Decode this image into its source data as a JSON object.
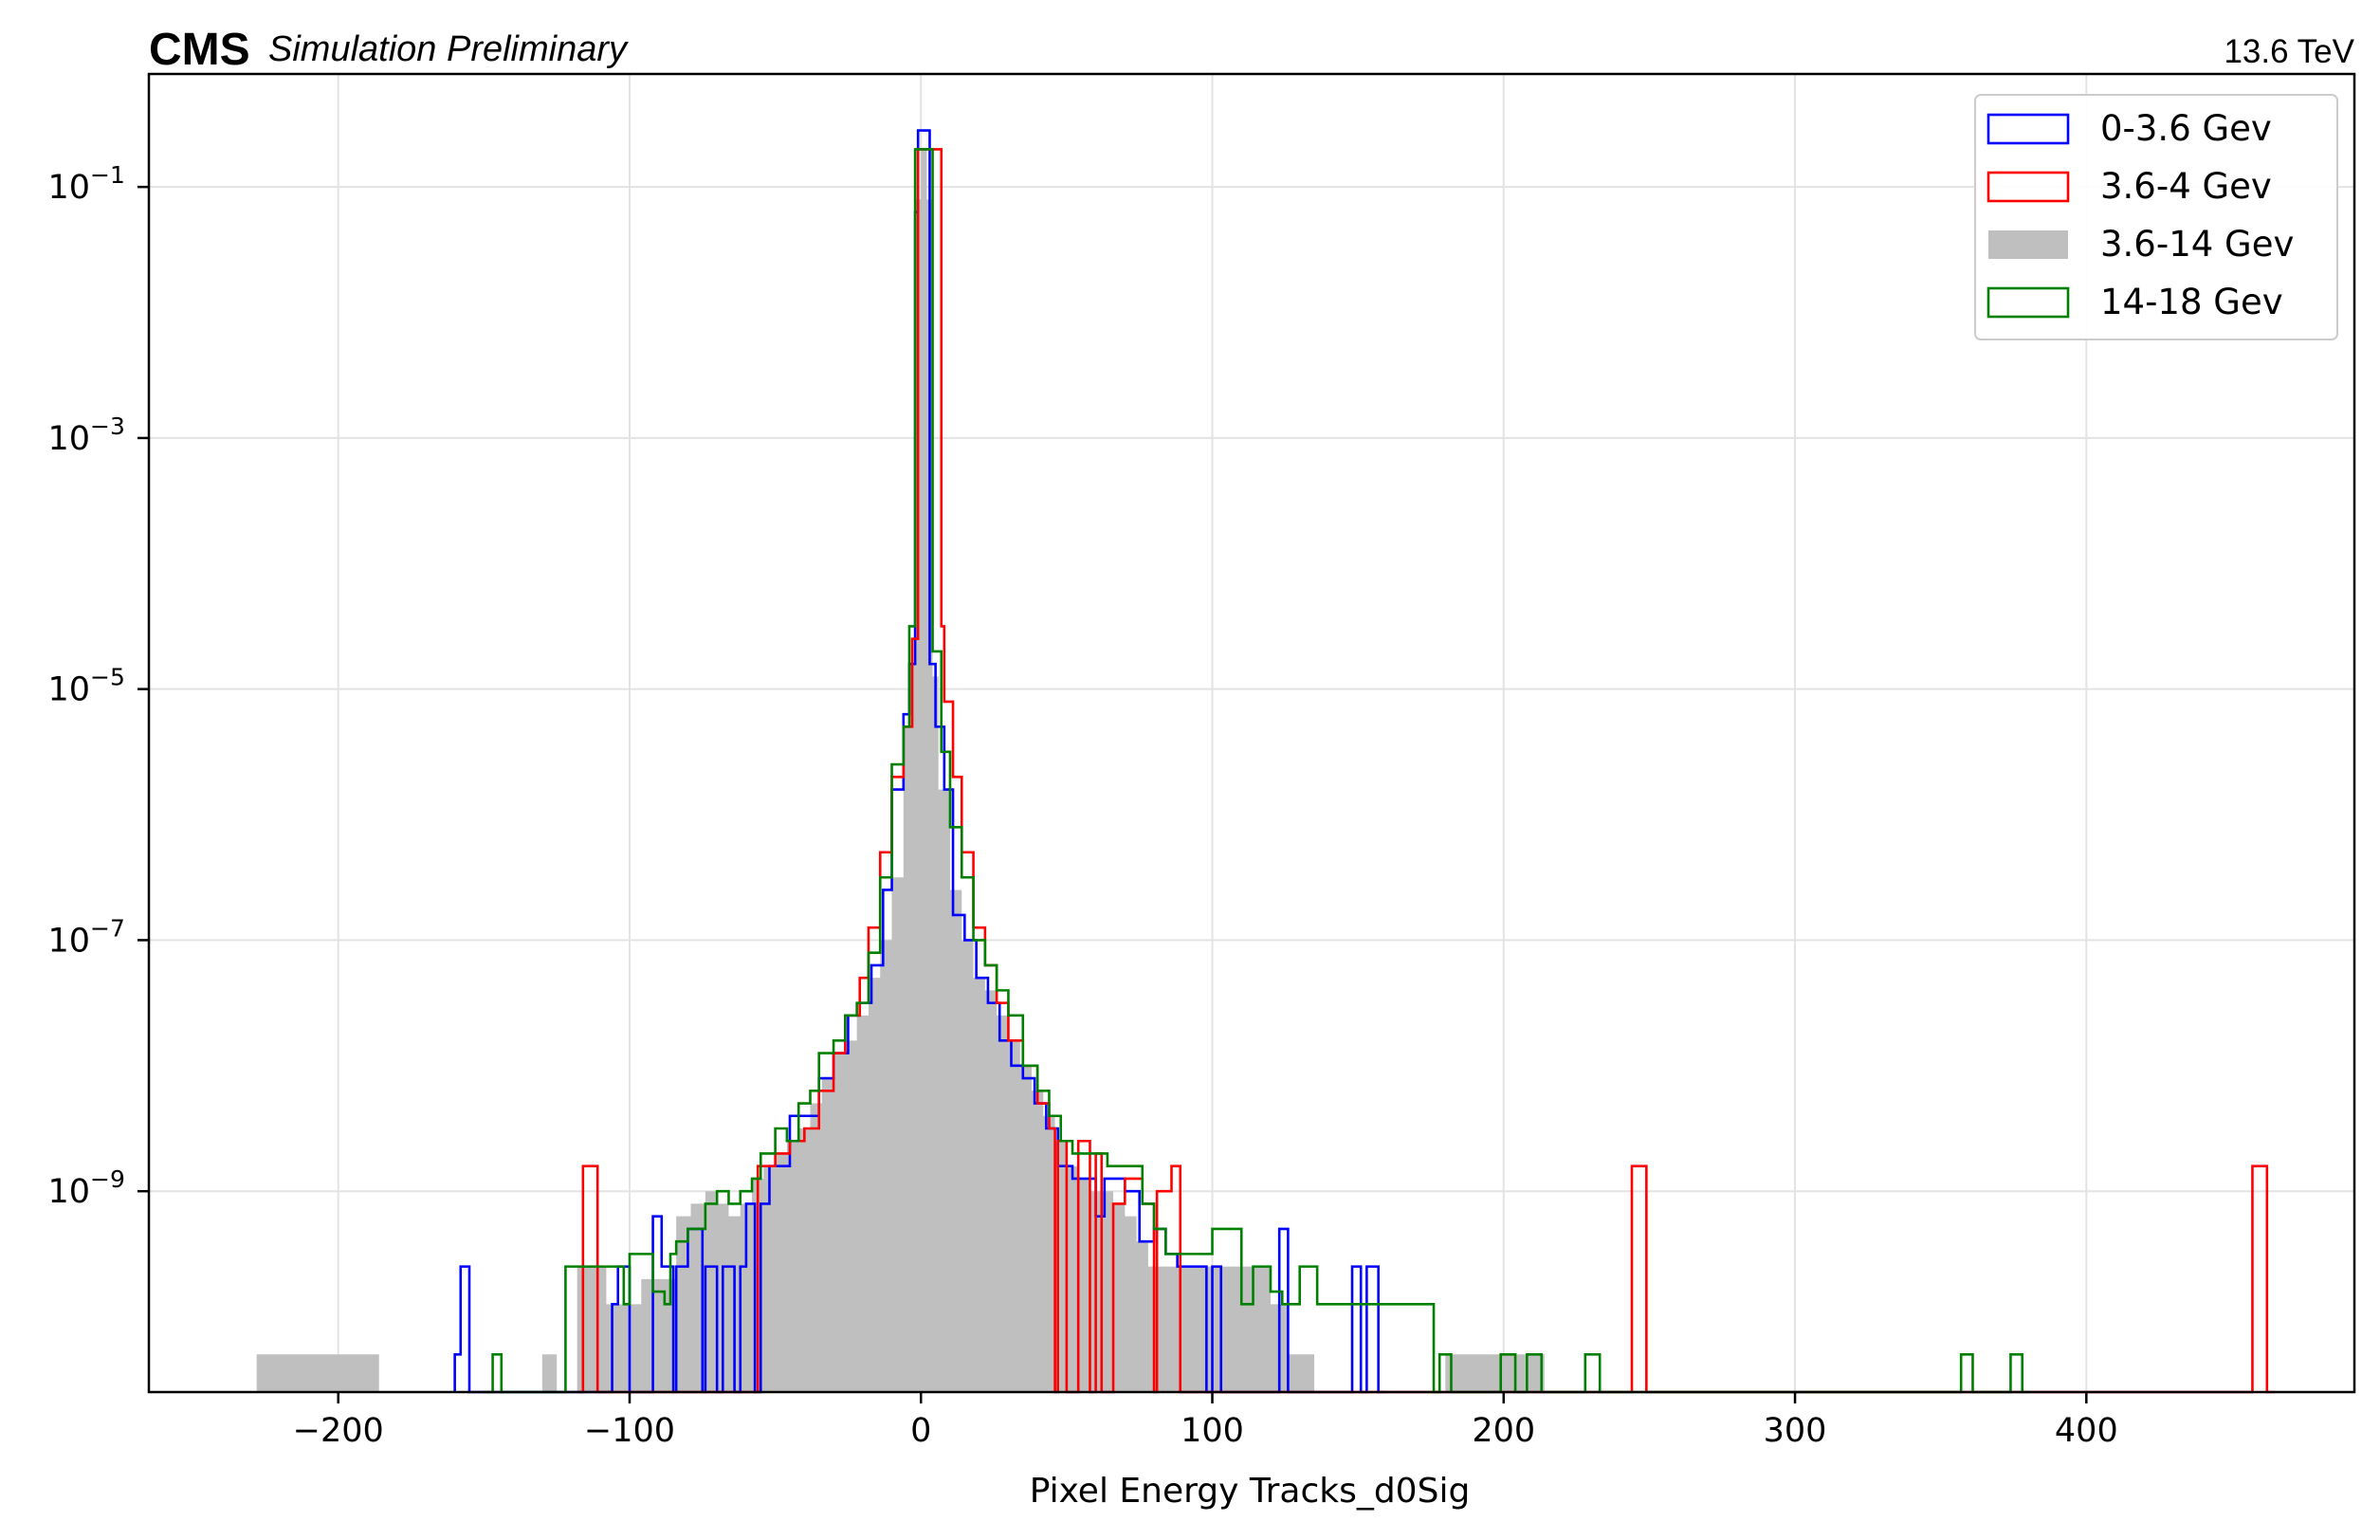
{
  "header": {
    "experiment": "CMS",
    "status": "Simulation Preliminary",
    "energy": "13.6 TeV"
  },
  "chart_data": {
    "type": "histogram",
    "xlabel": "Pixel Energy Tracks_d0Sig",
    "ylabel": "",
    "yscale": "log",
    "xlim": [
      -265,
      492
    ],
    "ylim_log10": [
      -10.6,
      -0.1
    ],
    "x_ticks": [
      -200,
      -100,
      0,
      100,
      200,
      300,
      400
    ],
    "x_tick_labels": [
      "−200",
      "−100",
      "0",
      "100",
      "200",
      "300",
      "400"
    ],
    "y_ticks_log10": [
      -1,
      -3,
      -5,
      -7,
      -9
    ],
    "y_tick_labels": [
      "10",
      "10",
      "10",
      "10",
      "10"
    ],
    "y_tick_exponents": [
      "−1",
      "−3",
      "−5",
      "−7",
      "−9"
    ],
    "grid": true,
    "legend_position": "top-right",
    "legend": [
      "0-3.6 Gev",
      "3.6-4 Gev",
      "3.6-14 Gev",
      "14-18 Gev"
    ],
    "series": [
      {
        "name": "0-3.6 Gev",
        "style": "step",
        "color": "#0000ff",
        "points": [
          [
            -160,
            -10.3
          ],
          [
            -158,
            -9.6
          ],
          [
            -155,
            -10.6
          ],
          [
            -107,
            -10.6
          ],
          [
            -106,
            -9.9
          ],
          [
            -104,
            -9.6
          ],
          [
            -100,
            -10.6
          ],
          [
            -93,
            -10.6
          ],
          [
            -92,
            -9.2
          ],
          [
            -89,
            -9.6
          ],
          [
            -85,
            -10.6
          ],
          [
            -84,
            -9.6
          ],
          [
            -80,
            -9.3
          ],
          [
            -75,
            -10.6
          ],
          [
            -74,
            -9.6
          ],
          [
            -70,
            -10.6
          ],
          [
            -68,
            -9.6
          ],
          [
            -64,
            -10.6
          ],
          [
            -62,
            -9.6
          ],
          [
            -60,
            -9.1
          ],
          [
            -57,
            -10.6
          ],
          [
            -55,
            -9.1
          ],
          [
            -52,
            -8.8
          ],
          [
            -48,
            -8.8
          ],
          [
            -45,
            -8.4
          ],
          [
            -40,
            -8.4
          ],
          [
            -35,
            -8.1
          ],
          [
            -30,
            -7.9
          ],
          [
            -25,
            -7.6
          ],
          [
            -21,
            -7.5
          ],
          [
            -17,
            -7.2
          ],
          [
            -13,
            -6.6
          ],
          [
            -10,
            -5.8
          ],
          [
            -6,
            -5.2
          ],
          [
            -4,
            -4.8
          ],
          [
            -2,
            -1.2
          ],
          [
            -1,
            -0.55
          ],
          [
            0,
            -0.55
          ],
          [
            2,
            -0.55
          ],
          [
            3,
            -4.8
          ],
          [
            5,
            -5.3
          ],
          [
            8,
            -5.8
          ],
          [
            11,
            -6.8
          ],
          [
            15,
            -7.0
          ],
          [
            19,
            -7.3
          ],
          [
            23,
            -7.5
          ],
          [
            27,
            -7.8
          ],
          [
            31,
            -8.0
          ],
          [
            35,
            -8.1
          ],
          [
            39,
            -8.3
          ],
          [
            43,
            -8.5
          ],
          [
            47,
            -8.8
          ],
          [
            52,
            -8.9
          ],
          [
            57,
            -8.9
          ],
          [
            60,
            -9.2
          ],
          [
            63,
            -8.9
          ],
          [
            67,
            -8.9
          ],
          [
            70,
            -9.0
          ],
          [
            75,
            -9.4
          ],
          [
            80,
            -9.3
          ],
          [
            84,
            -9.5
          ],
          [
            88,
            -9.6
          ],
          [
            93,
            -9.6
          ],
          [
            98,
            -10.6
          ],
          [
            100,
            -9.6
          ],
          [
            103,
            -10.6
          ],
          [
            122,
            -10.6
          ],
          [
            123,
            -9.3
          ],
          [
            126,
            -10.6
          ],
          [
            146,
            -10.6
          ],
          [
            148,
            -9.6
          ],
          [
            151,
            -10.6
          ],
          [
            153,
            -9.6
          ],
          [
            157,
            -10.6
          ]
        ]
      },
      {
        "name": "3.6-4 Gev",
        "style": "step",
        "color": "#ff0000",
        "points": [
          [
            -118,
            -10.6
          ],
          [
            -116,
            -8.8
          ],
          [
            -111,
            -10.6
          ],
          [
            -58,
            -10.6
          ],
          [
            -56,
            -8.8
          ],
          [
            -50,
            -8.7
          ],
          [
            -45,
            -8.6
          ],
          [
            -40,
            -8.5
          ],
          [
            -35,
            -8.2
          ],
          [
            -30,
            -7.9
          ],
          [
            -26,
            -7.6
          ],
          [
            -21,
            -7.3
          ],
          [
            -18,
            -6.9
          ],
          [
            -14,
            -6.3
          ],
          [
            -10,
            -5.7
          ],
          [
            -6,
            -5.3
          ],
          [
            -3,
            -4.6
          ],
          [
            -1,
            -0.7
          ],
          [
            2,
            -0.7
          ],
          [
            3,
            -0.7
          ],
          [
            6,
            -0.7
          ],
          [
            7,
            -4.5
          ],
          [
            8,
            -5.1
          ],
          [
            11,
            -5.7
          ],
          [
            14,
            -6.3
          ],
          [
            18,
            -6.9
          ],
          [
            22,
            -7.2
          ],
          [
            26,
            -7.5
          ],
          [
            30,
            -7.8
          ],
          [
            35,
            -8.0
          ],
          [
            40,
            -8.3
          ],
          [
            44,
            -8.5
          ],
          [
            46,
            -10.6
          ],
          [
            47,
            -8.6
          ],
          [
            50,
            -10.6
          ],
          [
            54,
            -8.6
          ],
          [
            58,
            -10.6
          ],
          [
            60,
            -8.7
          ],
          [
            62,
            -10.6
          ],
          [
            66,
            -9.1
          ],
          [
            70,
            -8.9
          ],
          [
            76,
            -9.1
          ],
          [
            80,
            -10.6
          ],
          [
            81,
            -9.0
          ],
          [
            86,
            -8.8
          ],
          [
            89,
            -10.6
          ],
          [
            243,
            -10.6
          ],
          [
            244,
            -8.8
          ],
          [
            249,
            -10.6
          ],
          [
            456,
            -10.6
          ],
          [
            457,
            -8.8
          ],
          [
            462,
            -10.6
          ]
        ]
      },
      {
        "name": "3.6-14 Gev",
        "style": "filled",
        "color": "#bfbfbf",
        "points": [
          [
            -228,
            -10.3
          ],
          [
            -186,
            -10.6
          ],
          [
            -168,
            -10.6
          ],
          [
            -130,
            -10.3
          ],
          [
            -125,
            -10.6
          ],
          [
            -118,
            -9.6
          ],
          [
            -108,
            -9.9
          ],
          [
            -96,
            -9.7
          ],
          [
            -84,
            -9.2
          ],
          [
            -79,
            -9.1
          ],
          [
            -74,
            -9.0
          ],
          [
            -70,
            -9.1
          ],
          [
            -66,
            -9.2
          ],
          [
            -62,
            -9.1
          ],
          [
            -58,
            -8.9
          ],
          [
            -54,
            -8.8
          ],
          [
            -50,
            -8.7
          ],
          [
            -46,
            -8.6
          ],
          [
            -42,
            -8.5
          ],
          [
            -38,
            -8.3
          ],
          [
            -34,
            -8.1
          ],
          [
            -30,
            -7.9
          ],
          [
            -26,
            -7.8
          ],
          [
            -22,
            -7.6
          ],
          [
            -18,
            -7.3
          ],
          [
            -14,
            -7.0
          ],
          [
            -10,
            -6.5
          ],
          [
            -6,
            -5.3
          ],
          [
            -4,
            -4.8
          ],
          [
            -2,
            -1.1
          ],
          [
            0,
            -0.7
          ],
          [
            2,
            -1.1
          ],
          [
            4,
            -4.9
          ],
          [
            6,
            -5.8
          ],
          [
            10,
            -6.6
          ],
          [
            14,
            -7.0
          ],
          [
            18,
            -7.3
          ],
          [
            22,
            -7.4
          ],
          [
            26,
            -7.6
          ],
          [
            30,
            -7.8
          ],
          [
            34,
            -8.0
          ],
          [
            38,
            -8.2
          ],
          [
            42,
            -8.4
          ],
          [
            46,
            -8.6
          ],
          [
            50,
            -8.8
          ],
          [
            54,
            -8.9
          ],
          [
            58,
            -9.0
          ],
          [
            62,
            -9.0
          ],
          [
            66,
            -9.1
          ],
          [
            70,
            -9.2
          ],
          [
            74,
            -9.4
          ],
          [
            78,
            -9.6
          ],
          [
            82,
            -9.6
          ],
          [
            90,
            -9.6
          ],
          [
            100,
            -9.6
          ],
          [
            110,
            -9.6
          ],
          [
            120,
            -9.9
          ],
          [
            126,
            -10.3
          ],
          [
            135,
            -10.6
          ],
          [
            160,
            -10.6
          ],
          [
            170,
            -10.6
          ],
          [
            180,
            -10.3
          ],
          [
            214,
            -10.6
          ],
          [
            244,
            -10.6
          ],
          [
            304,
            -10.6
          ],
          [
            457,
            -10.6
          ]
        ]
      },
      {
        "name": "14-18 Gev",
        "style": "step",
        "color": "#008000",
        "points": [
          [
            -150,
            -10.6
          ],
          [
            -147,
            -10.3
          ],
          [
            -144,
            -10.6
          ],
          [
            -123,
            -10.6
          ],
          [
            -122,
            -9.6
          ],
          [
            -106,
            -9.6
          ],
          [
            -102,
            -9.9
          ],
          [
            -100,
            -9.5
          ],
          [
            -92,
            -9.8
          ],
          [
            -88,
            -9.9
          ],
          [
            -86,
            -9.5
          ],
          [
            -84,
            -9.4
          ],
          [
            -80,
            -9.3
          ],
          [
            -74,
            -9.1
          ],
          [
            -70,
            -9.0
          ],
          [
            -66,
            -9.1
          ],
          [
            -62,
            -9.0
          ],
          [
            -58,
            -8.9
          ],
          [
            -55,
            -8.7
          ],
          [
            -50,
            -8.5
          ],
          [
            -46,
            -8.6
          ],
          [
            -42,
            -8.3
          ],
          [
            -38,
            -8.2
          ],
          [
            -35,
            -7.9
          ],
          [
            -30,
            -7.8
          ],
          [
            -26,
            -7.6
          ],
          [
            -22,
            -7.5
          ],
          [
            -18,
            -7.1
          ],
          [
            -14,
            -6.5
          ],
          [
            -10,
            -5.6
          ],
          [
            -6,
            -5.3
          ],
          [
            -4,
            -4.5
          ],
          [
            -2,
            -0.7
          ],
          [
            0,
            -0.7
          ],
          [
            2,
            -0.7
          ],
          [
            4,
            -4.7
          ],
          [
            7,
            -5.5
          ],
          [
            10,
            -6.1
          ],
          [
            14,
            -6.5
          ],
          [
            18,
            -7.0
          ],
          [
            22,
            -7.2
          ],
          [
            26,
            -7.4
          ],
          [
            30,
            -7.6
          ],
          [
            35,
            -8.0
          ],
          [
            40,
            -8.2
          ],
          [
            44,
            -8.4
          ],
          [
            48,
            -8.6
          ],
          [
            52,
            -8.7
          ],
          [
            56,
            -8.7
          ],
          [
            60,
            -8.7
          ],
          [
            64,
            -8.8
          ],
          [
            68,
            -8.8
          ],
          [
            72,
            -8.8
          ],
          [
            76,
            -9.1
          ],
          [
            80,
            -9.3
          ],
          [
            84,
            -9.5
          ],
          [
            90,
            -9.5
          ],
          [
            100,
            -9.3
          ],
          [
            110,
            -9.9
          ],
          [
            114,
            -9.6
          ],
          [
            120,
            -9.8
          ],
          [
            124,
            -9.9
          ],
          [
            130,
            -9.6
          ],
          [
            136,
            -9.9
          ],
          [
            140,
            -9.9
          ],
          [
            176,
            -10.6
          ],
          [
            178,
            -10.3
          ],
          [
            182,
            -10.6
          ],
          [
            198,
            -10.6
          ],
          [
            199,
            -10.3
          ],
          [
            204,
            -10.6
          ],
          [
            208,
            -10.3
          ],
          [
            213,
            -10.6
          ],
          [
            228,
            -10.3
          ],
          [
            233,
            -10.6
          ],
          [
            356,
            -10.6
          ],
          [
            357,
            -10.3
          ],
          [
            361,
            -10.6
          ],
          [
            374,
            -10.3
          ],
          [
            378,
            -10.6
          ]
        ]
      }
    ]
  }
}
